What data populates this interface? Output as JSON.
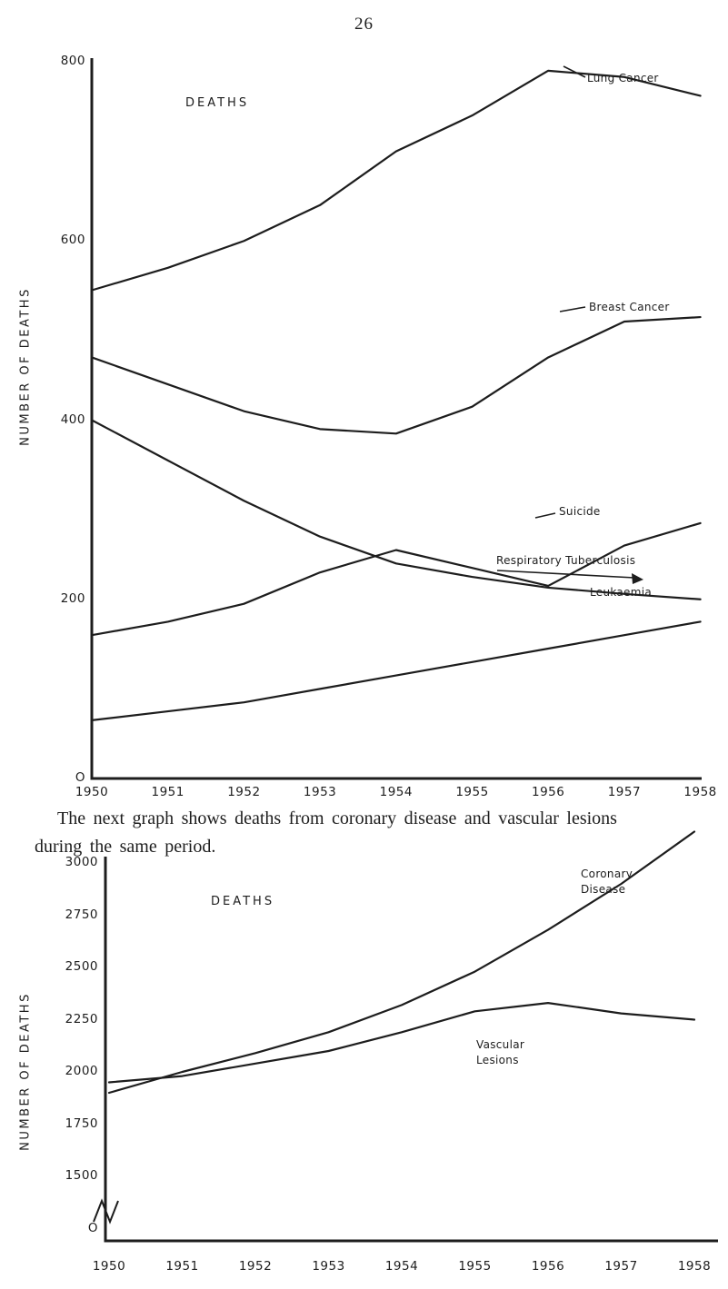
{
  "page": {
    "number": "26"
  },
  "caption": {
    "line1": "The next graph shows deaths from coronary disease and vascular lesions",
    "line2": "during the same period."
  },
  "ink_color": "#1d1d1d",
  "chart_data": [
    {
      "type": "line",
      "title": "DEATHS",
      "ylabel": "NUMBER OF DEATHS",
      "xlabel": "",
      "grid": false,
      "legend_position": "inline-labels",
      "x": [
        1950,
        1951,
        1952,
        1953,
        1954,
        1955,
        1956,
        1957,
        1958
      ],
      "ylim": [
        0,
        800
      ],
      "yticks": [
        800,
        600,
        400,
        200,
        0
      ],
      "ytick_labels": [
        "800",
        "600",
        "400",
        "200",
        "O"
      ],
      "series": [
        {
          "name": "Lung Cancer",
          "values": [
            545,
            570,
            600,
            640,
            700,
            740,
            790,
            783,
            762
          ]
        },
        {
          "name": "Breast Cancer",
          "values": [
            470,
            440,
            410,
            390,
            385,
            415,
            470,
            510,
            515
          ]
        },
        {
          "name": "Suicide",
          "values": [
            160,
            175,
            195,
            230,
            255,
            235,
            215,
            260,
            285
          ]
        },
        {
          "name": "Respiratory Tuberculosis",
          "values": [
            400,
            355,
            310,
            270,
            240,
            225,
            213,
            206,
            200
          ]
        },
        {
          "name": "Leukaemia",
          "values": [
            65,
            75,
            85,
            100,
            115,
            130,
            145,
            160,
            175
          ]
        }
      ]
    },
    {
      "type": "line",
      "title": "DEATHS",
      "ylabel": "NUMBER OF DEATHS",
      "xlabel": "",
      "grid": false,
      "legend_position": "inline-labels",
      "broken_axis": true,
      "x": [
        1950,
        1951,
        1952,
        1953,
        1954,
        1955,
        1956,
        1957,
        1958
      ],
      "ylim": [
        1500,
        3000
      ],
      "yticks": [
        3000,
        2750,
        2500,
        2250,
        2000,
        1750,
        1500,
        0
      ],
      "ytick_labels": [
        "3000",
        "2750",
        "2500",
        "2250",
        "2000",
        "1750",
        "1500",
        "O"
      ],
      "series": [
        {
          "name": "Coronary Disease",
          "label_lines": [
            "Coronary",
            "Disease"
          ],
          "values": [
            1900,
            2000,
            2090,
            2190,
            2320,
            2480,
            2680,
            2900,
            3150
          ]
        },
        {
          "name": "Vascular Lesions",
          "label_lines": [
            "Vascular",
            "Lesions"
          ],
          "values": [
            1950,
            1980,
            2040,
            2100,
            2190,
            2290,
            2330,
            2280,
            2250
          ]
        }
      ]
    }
  ]
}
